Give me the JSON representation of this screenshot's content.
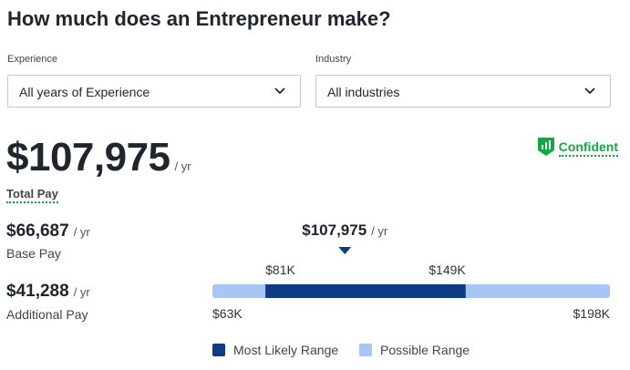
{
  "header": {
    "title": "How much does an Entrepreneur make?"
  },
  "filters": [
    {
      "label": "Experience",
      "selected": "All years of Experience"
    },
    {
      "label": "Industry",
      "selected": "All industries"
    }
  ],
  "confidence": "Confident",
  "total_pay": {
    "amount": "$107,975",
    "unit": "/ yr",
    "label": "Total Pay"
  },
  "breakdown": [
    {
      "amount": "$66,687",
      "unit": "/ yr",
      "label": "Base Pay"
    },
    {
      "amount": "$41,288",
      "unit": "/ yr",
      "label": "Additional Pay"
    }
  ],
  "range": {
    "median": {
      "value": 107975,
      "label": "$107,975",
      "unit": "/ yr"
    },
    "min": {
      "value": 63000,
      "label": "$63K"
    },
    "likely_low": {
      "value": 81000,
      "label": "$81K"
    },
    "likely_high": {
      "value": 149000,
      "label": "$149K"
    },
    "max": {
      "value": 198000,
      "label": "$198K"
    },
    "likely_color": "#0d3b84",
    "possible_color": "#a8c6f3"
  },
  "legend": [
    "Most Likely Range",
    "Possible Range"
  ]
}
